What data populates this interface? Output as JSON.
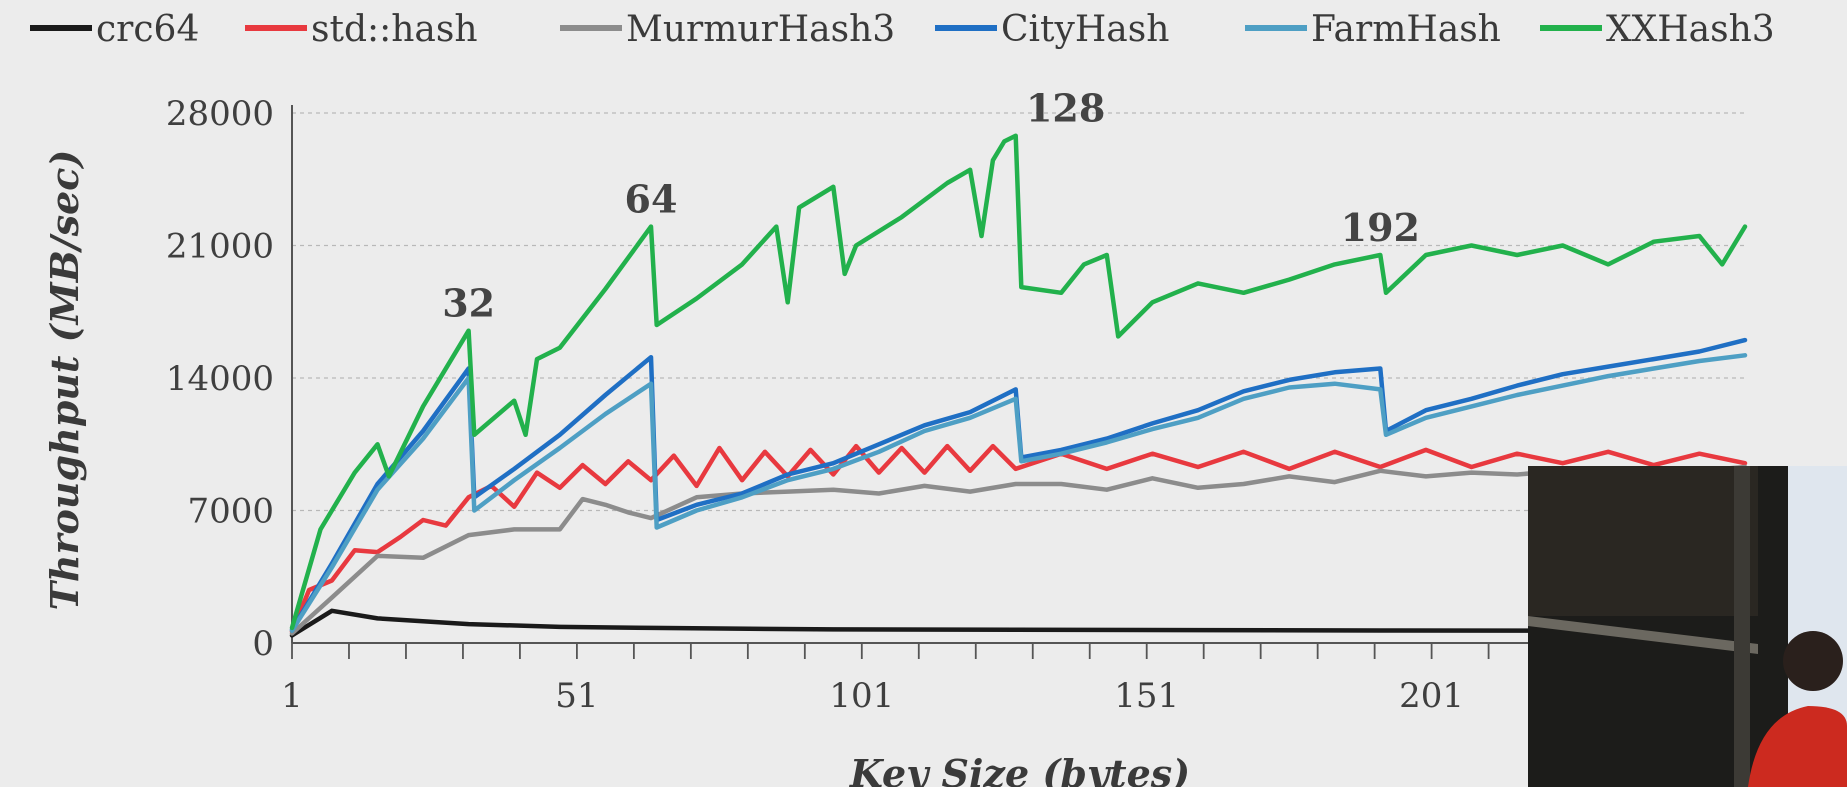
{
  "chart_data": {
    "type": "line",
    "title": "",
    "xlabel": "Key Size (bytes)",
    "ylabel": "Throughput (MB/sec)",
    "xlim": [
      1,
      256
    ],
    "ylim": [
      0,
      28000
    ],
    "grid": true,
    "legend_position": "top",
    "x_ticks": [
      "1",
      "51",
      "101",
      "151",
      "201"
    ],
    "y_ticks": [
      "0",
      "7000",
      "14000",
      "21000",
      "28000"
    ],
    "annotations": [
      {
        "text": "32",
        "x": 32,
        "y": 16500
      },
      {
        "text": "64",
        "x": 64,
        "y": 22000
      },
      {
        "text": "128",
        "x": 128,
        "y": 26800
      },
      {
        "text": "192",
        "x": 192,
        "y": 20500
      }
    ],
    "series": [
      {
        "name": "crc64",
        "color": "#1a1a1a",
        "x": [
          1,
          8,
          16,
          32,
          48,
          64,
          96,
          128,
          160,
          192,
          224,
          256
        ],
        "y": [
          400,
          1700,
          1300,
          1000,
          850,
          800,
          720,
          700,
          680,
          660,
          650,
          640
        ]
      },
      {
        "name": "std::hash",
        "color": "#e8393f",
        "x": [
          1,
          4,
          8,
          12,
          16,
          20,
          24,
          28,
          32,
          36,
          40,
          44,
          48,
          52,
          56,
          60,
          64,
          68,
          72,
          76,
          80,
          84,
          88,
          92,
          96,
          100,
          104,
          108,
          112,
          116,
          120,
          124,
          128,
          136,
          144,
          152,
          160,
          168,
          176,
          184,
          192,
          200,
          208,
          216,
          224,
          232,
          240,
          248,
          256
        ],
        "y": [
          600,
          2800,
          3300,
          4900,
          4800,
          5600,
          6500,
          6200,
          7700,
          8300,
          7200,
          9000,
          8200,
          9400,
          8400,
          9600,
          8600,
          9900,
          8300,
          10300,
          8600,
          10100,
          8800,
          10200,
          8900,
          10400,
          9000,
          10300,
          9000,
          10400,
          9100,
          10400,
          9200,
          10000,
          9200,
          10000,
          9300,
          10100,
          9200,
          10100,
          9300,
          10200,
          9300,
          10000,
          9500,
          10100,
          9400,
          10000,
          9500
        ]
      },
      {
        "name": "MurmurHash3",
        "color": "#8c8c8c",
        "x": [
          1,
          8,
          16,
          24,
          32,
          40,
          48,
          52,
          56,
          60,
          64,
          72,
          80,
          88,
          96,
          104,
          112,
          120,
          128,
          136,
          144,
          152,
          160,
          168,
          176,
          184,
          192,
          200,
          208,
          216,
          224,
          232,
          240,
          248,
          256
        ],
        "y": [
          500,
          2400,
          4600,
          4500,
          5700,
          6000,
          6000,
          7600,
          7300,
          6900,
          6600,
          7700,
          7900,
          8000,
          8100,
          7900,
          8300,
          8000,
          8400,
          8400,
          8100,
          8700,
          8200,
          8400,
          8800,
          8500,
          9100,
          8800,
          9000,
          8900,
          9100,
          8900,
          9100,
          9100,
          9300
        ]
      },
      {
        "name": "CityHash",
        "color": "#1f6fc4",
        "x": [
          1,
          8,
          16,
          24,
          32,
          33,
          40,
          48,
          56,
          64,
          65,
          72,
          80,
          88,
          96,
          104,
          112,
          120,
          128,
          129,
          136,
          144,
          152,
          160,
          168,
          176,
          184,
          192,
          193,
          200,
          208,
          216,
          224,
          232,
          240,
          248,
          256
        ],
        "y": [
          700,
          4200,
          8400,
          11200,
          14500,
          7700,
          9200,
          11000,
          13100,
          15100,
          6500,
          7300,
          7900,
          8900,
          9500,
          10500,
          11500,
          12200,
          13400,
          9800,
          10200,
          10800,
          11600,
          12300,
          13300,
          13900,
          14300,
          14500,
          11200,
          12300,
          12900,
          13600,
          14200,
          14600,
          15000,
          15400,
          16000
        ]
      },
      {
        "name": "FarmHash",
        "color": "#4e9fc4",
        "x": [
          1,
          8,
          16,
          24,
          32,
          33,
          40,
          48,
          56,
          64,
          65,
          72,
          80,
          88,
          96,
          104,
          112,
          120,
          128,
          129,
          136,
          144,
          152,
          160,
          168,
          176,
          184,
          192,
          193,
          200,
          208,
          216,
          224,
          232,
          240,
          248,
          256
        ],
        "y": [
          650,
          4000,
          8100,
          10800,
          14000,
          7000,
          8600,
          10300,
          12100,
          13700,
          6100,
          7000,
          7700,
          8600,
          9200,
          10100,
          11200,
          11900,
          12900,
          9600,
          10000,
          10600,
          11300,
          11900,
          12900,
          13500,
          13700,
          13400,
          11000,
          11900,
          12500,
          13100,
          13600,
          14100,
          14500,
          14900,
          15200
        ]
      },
      {
        "name": "XXHash3",
        "color": "#22b14c",
        "x": [
          1,
          6,
          12,
          16,
          18,
          24,
          32,
          33,
          40,
          42,
          44,
          48,
          56,
          64,
          65,
          72,
          80,
          86,
          88,
          90,
          96,
          98,
          100,
          108,
          116,
          120,
          122,
          124,
          126,
          128,
          129,
          136,
          140,
          144,
          146,
          152,
          160,
          168,
          176,
          184,
          192,
          193,
          200,
          208,
          216,
          224,
          232,
          240,
          248,
          252,
          256
        ],
        "y": [
          800,
          6000,
          9000,
          10500,
          8800,
          12500,
          16500,
          11000,
          12800,
          11000,
          15000,
          15600,
          18700,
          22000,
          16800,
          18200,
          20000,
          22000,
          18000,
          23000,
          24100,
          19500,
          21000,
          22500,
          24300,
          25000,
          21500,
          25500,
          26500,
          26800,
          18800,
          18500,
          20000,
          20500,
          16200,
          18000,
          19000,
          18500,
          19200,
          20000,
          20500,
          18500,
          20500,
          21000,
          20500,
          21000,
          20000,
          21200,
          21500,
          20000,
          22000
        ]
      }
    ]
  }
}
